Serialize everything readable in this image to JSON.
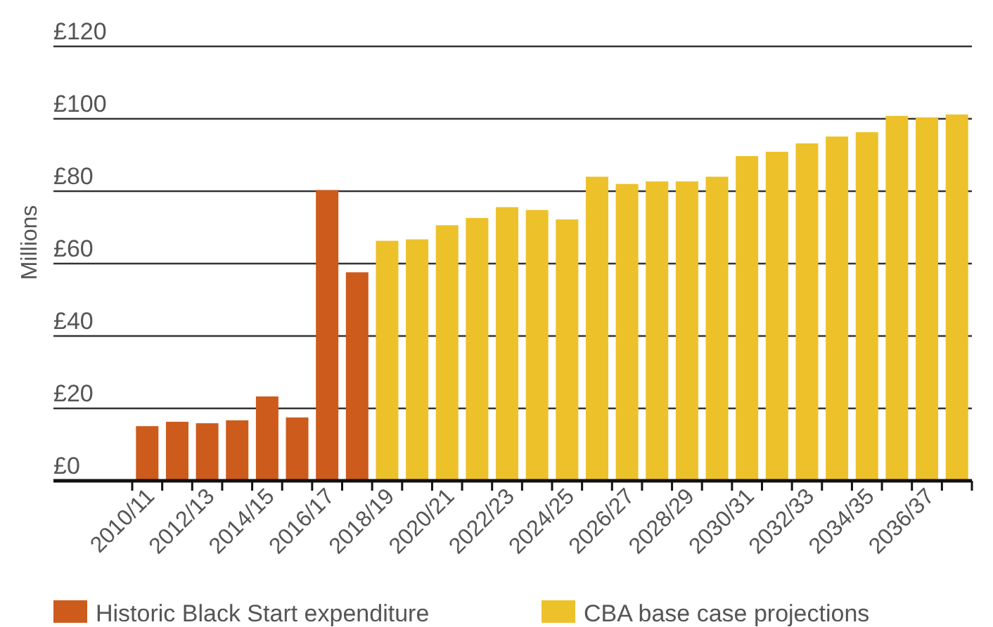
{
  "chart_data": {
    "type": "bar",
    "ylabel": "Millions",
    "categories": [
      "2010/11",
      null,
      "2012/13",
      null,
      "2014/15",
      null,
      "2016/17",
      null,
      "2018/19",
      null,
      "2020/21",
      null,
      "2022/23",
      null,
      "2024/25",
      null,
      "2026/27",
      null,
      "2028/29",
      null,
      "2030/31",
      null,
      "2032/33",
      null,
      "2034/35",
      null,
      "2036/37",
      null
    ],
    "series": [
      {
        "name": "Historic Black Start expenditure",
        "color": "#cd5b1c",
        "values": [
          15.1,
          16.3,
          15.9,
          16.7,
          23.3,
          17.5,
          80.3,
          57.6,
          null,
          null,
          null,
          null,
          null,
          null,
          null,
          null,
          null,
          null,
          null,
          null,
          null,
          null,
          null,
          null,
          null,
          null,
          null,
          null
        ]
      },
      {
        "name": "CBA base case projections",
        "color": "#edc12a",
        "values": [
          null,
          null,
          null,
          null,
          null,
          null,
          null,
          null,
          66.3,
          66.7,
          70.6,
          72.6,
          75.6,
          74.8,
          72.2,
          84.0,
          82.0,
          82.7,
          82.7,
          84.0,
          89.7,
          90.9,
          93.2,
          95.1,
          96.3,
          100.8,
          100.4,
          101.2
        ]
      }
    ],
    "ylim": [
      0,
      120
    ],
    "yticks": [
      {
        "value": 0,
        "label": "£0"
      },
      {
        "value": 20,
        "label": "£20"
      },
      {
        "value": 40,
        "label": "£40"
      },
      {
        "value": 60,
        "label": "£60"
      },
      {
        "value": 80,
        "label": "£80"
      },
      {
        "value": 100,
        "label": "£100"
      },
      {
        "value": 120,
        "label": "£120"
      }
    ],
    "grid": "y",
    "legend": "bottom"
  }
}
